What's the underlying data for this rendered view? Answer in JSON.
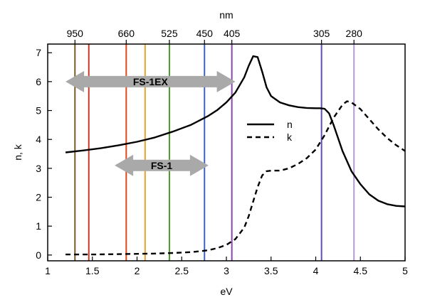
{
  "chart_data": {
    "type": "line",
    "title": "",
    "xlabel": "eV",
    "ylabel": "n, k",
    "top_axis_label": "nm",
    "xlim": [
      1,
      5
    ],
    "ylim": [
      -0.2,
      7.3
    ],
    "x_ticks": [
      "1",
      "1.5",
      "2",
      "2.5",
      "3",
      "3.5",
      "4",
      "4.5",
      "5"
    ],
    "y_ticks": [
      "0",
      "1",
      "2",
      "3",
      "4",
      "5",
      "6",
      "7"
    ],
    "grid": false,
    "series": [
      {
        "name": "n",
        "style": "solid",
        "color": "#000000",
        "x": [
          1.2,
          1.4,
          1.6,
          1.8,
          2.0,
          2.2,
          2.4,
          2.6,
          2.8,
          2.9,
          3.0,
          3.1,
          3.2,
          3.25,
          3.3,
          3.35,
          3.4,
          3.45,
          3.5,
          3.6,
          3.7,
          3.8,
          3.9,
          4.0,
          4.05,
          4.1,
          4.15,
          4.2,
          4.3,
          4.4,
          4.5,
          4.6,
          4.7,
          4.8,
          4.9,
          5.0
        ],
        "values": [
          3.55,
          3.62,
          3.7,
          3.8,
          3.92,
          4.07,
          4.27,
          4.5,
          4.82,
          5.02,
          5.28,
          5.62,
          6.15,
          6.55,
          6.88,
          6.85,
          6.35,
          5.8,
          5.5,
          5.28,
          5.18,
          5.12,
          5.09,
          5.08,
          5.08,
          5.06,
          4.9,
          4.5,
          3.6,
          2.9,
          2.45,
          2.1,
          1.88,
          1.76,
          1.7,
          1.68
        ]
      },
      {
        "name": "k",
        "style": "dashed",
        "color": "#000000",
        "x": [
          1.2,
          1.5,
          1.8,
          2.0,
          2.2,
          2.4,
          2.6,
          2.7,
          2.8,
          2.9,
          3.0,
          3.1,
          3.2,
          3.25,
          3.3,
          3.35,
          3.4,
          3.45,
          3.5,
          3.6,
          3.7,
          3.8,
          3.9,
          4.0,
          4.1,
          4.2,
          4.3,
          4.35,
          4.4,
          4.5,
          4.6,
          4.7,
          4.8,
          4.9,
          5.0
        ],
        "values": [
          0.02,
          0.02,
          0.03,
          0.04,
          0.05,
          0.07,
          0.1,
          0.13,
          0.17,
          0.24,
          0.35,
          0.55,
          0.95,
          1.35,
          1.85,
          2.35,
          2.75,
          2.9,
          2.92,
          2.92,
          3.0,
          3.15,
          3.35,
          3.65,
          4.15,
          4.75,
          5.2,
          5.32,
          5.28,
          5.05,
          4.7,
          4.35,
          4.05,
          3.8,
          3.6
        ]
      }
    ],
    "wavelength_lines": [
      {
        "nm": "950",
        "ev": 1.305,
        "color": "#7a5a2a",
        "labeled": true
      },
      {
        "ev": 1.46,
        "color": "#c0392b",
        "labeled": false
      },
      {
        "nm": "660",
        "ev": 1.879,
        "color": "#e04a1a",
        "labeled": true
      },
      {
        "ev": 2.09,
        "color": "#e8a030",
        "labeled": false
      },
      {
        "nm": "525",
        "ev": 2.362,
        "color": "#4c9a2a",
        "labeled": true
      },
      {
        "nm": "450",
        "ev": 2.755,
        "color": "#3a62c0",
        "labeled": true
      },
      {
        "nm": "405",
        "ev": 3.061,
        "color": "#8e44ad",
        "labeled": true
      },
      {
        "nm": "305",
        "ev": 4.065,
        "color": "#5b4fb8",
        "labeled": true
      },
      {
        "nm": "280",
        "ev": 4.428,
        "color": "#b59ad8",
        "labeled": true
      }
    ],
    "bands": [
      {
        "label": "FS-1EX",
        "x_start": 1.2,
        "x_end": 3.1,
        "y": 6.0
      },
      {
        "label": "FS-1",
        "x_start": 1.75,
        "x_end": 2.8,
        "y": 3.1
      }
    ],
    "legend": {
      "placement": "center-right",
      "entries": [
        {
          "label": "n",
          "style": "solid"
        },
        {
          "label": "k",
          "style": "dashed"
        }
      ]
    }
  }
}
